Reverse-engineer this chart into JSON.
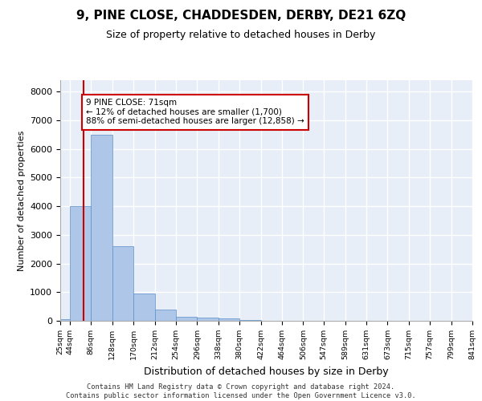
{
  "title": "9, PINE CLOSE, CHADDESDEN, DERBY, DE21 6ZQ",
  "subtitle": "Size of property relative to detached houses in Derby",
  "xlabel": "Distribution of detached houses by size in Derby",
  "ylabel": "Number of detached properties",
  "bar_color": "#aec6e8",
  "bar_edge_color": "#5a8fcc",
  "background_color": "#e8eef8",
  "grid_color": "#ffffff",
  "annotation_line_color": "#cc0000",
  "annotation_box_color": "#cc0000",
  "annotation_text": "9 PINE CLOSE: 71sqm\n← 12% of detached houses are smaller (1,700)\n88% of semi-detached houses are larger (12,858) →",
  "footer_text": "Contains HM Land Registry data © Crown copyright and database right 2024.\nContains public sector information licensed under the Open Government Licence v3.0.",
  "property_size": 71,
  "bin_left_edges": [
    25,
    44,
    86,
    128,
    170,
    212,
    254,
    296,
    338,
    380,
    422,
    464,
    506,
    547,
    589,
    631,
    673,
    715,
    757,
    799
  ],
  "bin_labels": [
    "25sqm",
    "44sqm",
    "86sqm",
    "128sqm",
    "170sqm",
    "212sqm",
    "254sqm",
    "296sqm",
    "338sqm",
    "380sqm",
    "422sqm",
    "464sqm",
    "506sqm",
    "547sqm",
    "589sqm",
    "631sqm",
    "673sqm",
    "715sqm",
    "757sqm",
    "799sqm",
    "841sqm"
  ],
  "bar_heights": [
    50,
    4000,
    6500,
    2600,
    950,
    400,
    150,
    100,
    75,
    30,
    10,
    5,
    3,
    2,
    1,
    1,
    0,
    0,
    0,
    0
  ],
  "ylim": [
    0,
    8400
  ],
  "yticks": [
    0,
    1000,
    2000,
    3000,
    4000,
    5000,
    6000,
    7000,
    8000
  ]
}
